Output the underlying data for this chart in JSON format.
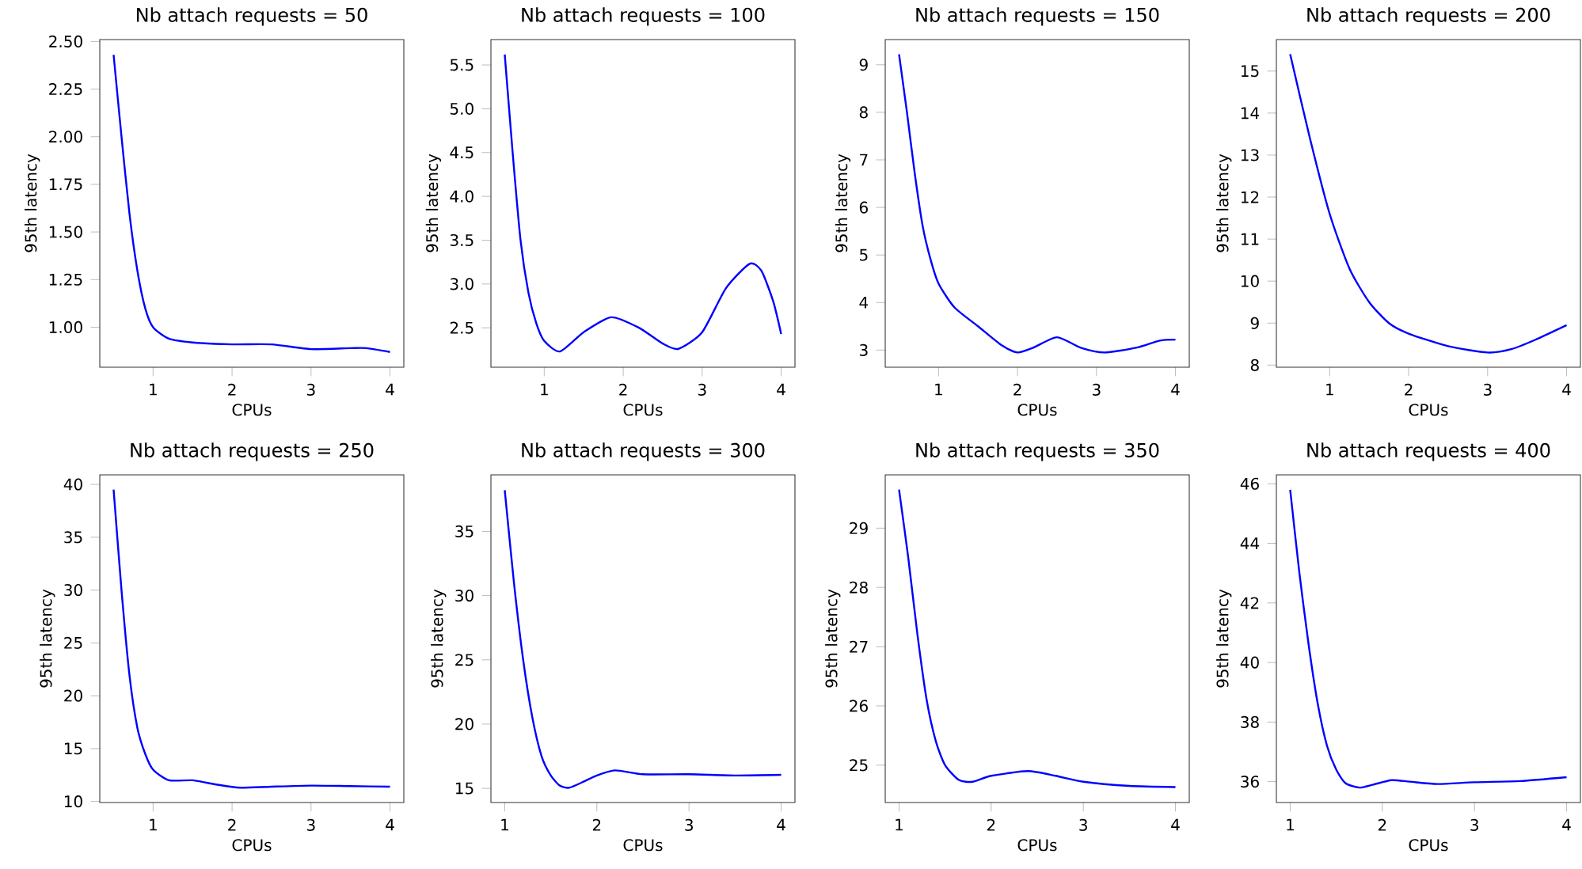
{
  "chart_data": [
    {
      "type": "line",
      "title": "Nb attach requests = 50",
      "xlabel": "CPUs",
      "ylabel": "95th latency",
      "color": "#0000ff",
      "xlim": [
        0.325,
        4.175
      ],
      "ylim": [
        0.79,
        2.51
      ],
      "xticks": [
        1,
        2,
        3,
        4
      ],
      "yticks": [
        {
          "value": 1,
          "label": "1.00"
        },
        1.25,
        {
          "value": 1.5,
          "label": "1.50"
        },
        1.75,
        {
          "value": 2,
          "label": "2.00"
        },
        2.25,
        {
          "value": 2.5,
          "label": "2.50"
        }
      ],
      "x": [
        0.5,
        0.6,
        0.7,
        0.8,
        0.9,
        1.0,
        1.2,
        1.5,
        2.0,
        2.5,
        3.0,
        3.5,
        3.7,
        4.0
      ],
      "values": [
        2.43,
        2.0,
        1.6,
        1.3,
        1.1,
        1.0,
        0.94,
        0.92,
        0.91,
        0.91,
        0.885,
        0.89,
        0.89,
        0.87
      ]
    },
    {
      "type": "line",
      "title": "Nb attach requests = 100",
      "xlabel": "CPUs",
      "ylabel": "95th latency",
      "color": "#0000ff",
      "xlim": [
        0.325,
        4.175
      ],
      "ylim": [
        2.05,
        5.79
      ],
      "xticks": [
        1,
        2,
        3,
        4
      ],
      "yticks": [
        2.5,
        {
          "value": 3,
          "label": "3.0"
        },
        3.5,
        {
          "value": 4,
          "label": "4.0"
        },
        4.5,
        {
          "value": 5,
          "label": "5.0"
        },
        5.5
      ],
      "x": [
        0.5,
        0.6,
        0.7,
        0.8,
        0.9,
        1.0,
        1.2,
        1.5,
        1.85,
        2.2,
        2.5,
        2.7,
        3.0,
        3.3,
        3.6,
        3.75,
        3.9,
        4.0
      ],
      "values": [
        5.62,
        4.5,
        3.5,
        2.9,
        2.55,
        2.35,
        2.23,
        2.45,
        2.62,
        2.5,
        2.32,
        2.26,
        2.45,
        2.95,
        3.23,
        3.15,
        2.8,
        2.43
      ]
    },
    {
      "type": "line",
      "title": "Nb attach requests = 150",
      "xlabel": "CPUs",
      "ylabel": "95th latency",
      "color": "#0000ff",
      "xlim": [
        0.325,
        4.175
      ],
      "ylim": [
        2.64,
        9.53
      ],
      "xticks": [
        1,
        2,
        3,
        4
      ],
      "yticks": [
        3,
        4,
        5,
        6,
        7,
        8,
        9
      ],
      "x": [
        0.5,
        0.6,
        0.7,
        0.8,
        0.9,
        1.0,
        1.2,
        1.5,
        1.8,
        2.0,
        2.2,
        2.5,
        2.8,
        3.1,
        3.5,
        3.8,
        4.0
      ],
      "values": [
        9.22,
        8.0,
        6.7,
        5.6,
        4.9,
        4.4,
        3.9,
        3.5,
        3.1,
        2.95,
        3.05,
        3.27,
        3.05,
        2.95,
        3.05,
        3.2,
        3.22
      ]
    },
    {
      "type": "line",
      "title": "Nb attach requests = 200",
      "xlabel": "CPUs",
      "ylabel": "95th latency",
      "color": "#0000ff",
      "xlim": [
        0.325,
        4.175
      ],
      "ylim": [
        7.95,
        15.75
      ],
      "xticks": [
        1,
        2,
        3,
        4
      ],
      "yticks": [
        8,
        9,
        10,
        11,
        12,
        13,
        14,
        15
      ],
      "x": [
        0.5,
        0.75,
        1.0,
        1.25,
        1.5,
        1.75,
        2.0,
        2.5,
        3.0,
        3.3,
        3.6,
        4.0
      ],
      "values": [
        15.4,
        13.4,
        11.6,
        10.3,
        9.5,
        9.0,
        8.75,
        8.45,
        8.3,
        8.38,
        8.6,
        8.95
      ]
    },
    {
      "type": "line",
      "title": "Nb attach requests = 250",
      "xlabel": "CPUs",
      "ylabel": "95th latency",
      "color": "#0000ff",
      "xlim": [
        0.325,
        4.175
      ],
      "ylim": [
        9.9,
        40.9
      ],
      "xticks": [
        1,
        2,
        3,
        4
      ],
      "yticks": [
        10,
        15,
        20,
        25,
        30,
        35,
        40
      ],
      "x": [
        0.5,
        0.6,
        0.7,
        0.8,
        0.9,
        1.0,
        1.2,
        1.5,
        1.8,
        2.1,
        2.5,
        3.0,
        3.5,
        4.0
      ],
      "values": [
        39.5,
        30,
        22,
        17,
        14.5,
        13,
        12,
        12,
        11.6,
        11.3,
        11.4,
        11.5,
        11.45,
        11.4
      ]
    },
    {
      "type": "line",
      "title": "Nb attach requests = 300",
      "xlabel": "CPUs",
      "ylabel": "95th latency",
      "color": "#0000ff",
      "xlim": [
        0.85,
        4.15
      ],
      "ylim": [
        13.9,
        39.4
      ],
      "xticks": [
        1,
        2,
        3,
        4
      ],
      "yticks": [
        15,
        20,
        25,
        30,
        35
      ],
      "x": [
        1.0,
        1.1,
        1.2,
        1.3,
        1.4,
        1.5,
        1.6,
        1.7,
        1.85,
        2.0,
        2.2,
        2.5,
        3.0,
        3.5,
        4.0
      ],
      "values": [
        38.2,
        31,
        25,
        20.5,
        17.5,
        16,
        15.2,
        15.05,
        15.5,
        16.0,
        16.4,
        16.1,
        16.1,
        16.0,
        16.05
      ]
    },
    {
      "type": "line",
      "title": "Nb attach requests = 350",
      "xlabel": "CPUs",
      "ylabel": "95th latency",
      "color": "#0000ff",
      "xlim": [
        0.85,
        4.15
      ],
      "ylim": [
        24.37,
        29.9
      ],
      "xticks": [
        1,
        2,
        3,
        4
      ],
      "yticks": [
        25,
        26,
        27,
        28,
        29
      ],
      "x": [
        1.0,
        1.1,
        1.2,
        1.3,
        1.4,
        1.5,
        1.65,
        1.8,
        2.0,
        2.4,
        2.7,
        3.0,
        3.5,
        4.0
      ],
      "values": [
        29.65,
        28.5,
        27.2,
        26.1,
        25.4,
        25.0,
        24.75,
        24.72,
        24.82,
        24.9,
        24.82,
        24.72,
        24.65,
        24.63
      ]
    },
    {
      "type": "line",
      "title": "Nb attach requests = 400",
      "xlabel": "CPUs",
      "ylabel": "95th latency",
      "color": "#0000ff",
      "xlim": [
        0.85,
        4.15
      ],
      "ylim": [
        35.3,
        46.3
      ],
      "xticks": [
        1,
        2,
        3,
        4
      ],
      "yticks": [
        36,
        38,
        40,
        42,
        44,
        46
      ],
      "x": [
        1.0,
        1.1,
        1.2,
        1.3,
        1.4,
        1.5,
        1.6,
        1.75,
        1.9,
        2.1,
        2.3,
        2.6,
        3.0,
        3.5,
        4.0
      ],
      "values": [
        45.8,
        43.0,
        40.6,
        38.6,
        37.2,
        36.4,
        35.95,
        35.8,
        35.9,
        36.05,
        36.0,
        35.92,
        35.98,
        36.02,
        36.15
      ]
    }
  ]
}
